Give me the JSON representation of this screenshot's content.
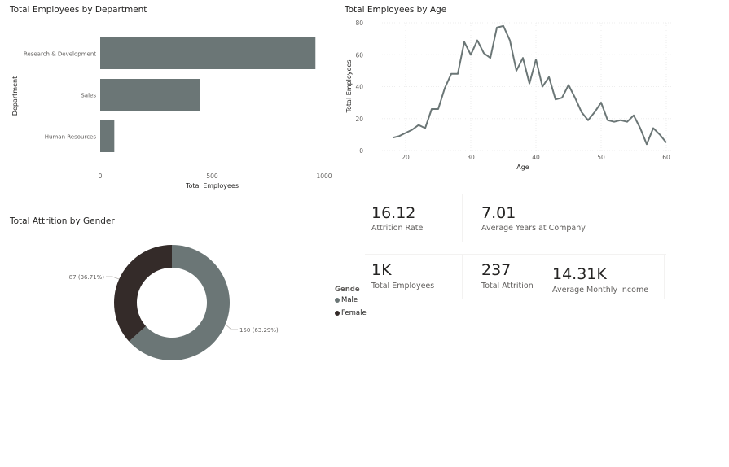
{
  "colors": {
    "primary": "#6b7676",
    "dark": "#342b29",
    "text": "#252423",
    "muted": "#605e5c",
    "grid": "#eeeeee"
  },
  "dept_chart": {
    "title": "Total Employees by Department",
    "xlabel": "Total Employees",
    "ylabel": "Department",
    "chart_data": {
      "type": "bar",
      "orientation": "horizontal",
      "categories": [
        "Research & Development",
        "Sales",
        "Human Resources"
      ],
      "values": [
        961,
        446,
        63
      ],
      "xlim": [
        0,
        1000
      ],
      "xticks": [
        "0",
        "500",
        "1000"
      ],
      "grid": false
    }
  },
  "age_chart": {
    "title": "Total Employees by Age",
    "xlabel": "Age",
    "ylabel": "Total Employees",
    "chart_data": {
      "type": "line",
      "x": [
        18,
        19,
        20,
        21,
        22,
        23,
        24,
        25,
        26,
        27,
        28,
        29,
        30,
        31,
        32,
        33,
        34,
        35,
        36,
        37,
        38,
        39,
        40,
        41,
        42,
        43,
        44,
        45,
        46,
        47,
        48,
        49,
        50,
        51,
        52,
        53,
        54,
        55,
        56,
        57,
        58,
        59,
        60
      ],
      "values": [
        8,
        9,
        11,
        13,
        16,
        14,
        26,
        26,
        39,
        48,
        48,
        68,
        60,
        69,
        61,
        58,
        77,
        78,
        69,
        50,
        58,
        42,
        57,
        40,
        46,
        32,
        33,
        41,
        33,
        24,
        19,
        24,
        30,
        19,
        18,
        19,
        18,
        22,
        14,
        4,
        14,
        10,
        5
      ],
      "xlim": [
        16,
        61
      ],
      "ylim": [
        0,
        80
      ],
      "xticks": [
        "20",
        "30",
        "40",
        "50",
        "60"
      ],
      "yticks": [
        "0",
        "20",
        "40",
        "60",
        "80"
      ],
      "grid": true
    }
  },
  "gender_chart": {
    "title": "Total Attrition by Gender",
    "chart_data": {
      "type": "pie",
      "donut": true,
      "categories": [
        "Male",
        "Female"
      ],
      "values": [
        150,
        87
      ],
      "data_labels": [
        "150 (63.29%)",
        "87 (36.71%)"
      ]
    },
    "legend": {
      "title": "Gende",
      "items": [
        "Male",
        "Female"
      ],
      "placement": "right"
    }
  },
  "cards": {
    "attrition_rate": {
      "value": "16.12",
      "label": "Attrition Rate"
    },
    "avg_years": {
      "value": "7.01",
      "label": "Average Years at Company"
    },
    "total_employees": {
      "value": "1K",
      "label": "Total Employees"
    },
    "total_attrition": {
      "value": "237",
      "label": "Total Attrition"
    },
    "avg_income": {
      "value": "14.31K",
      "label": "Average Monthly Income"
    }
  }
}
